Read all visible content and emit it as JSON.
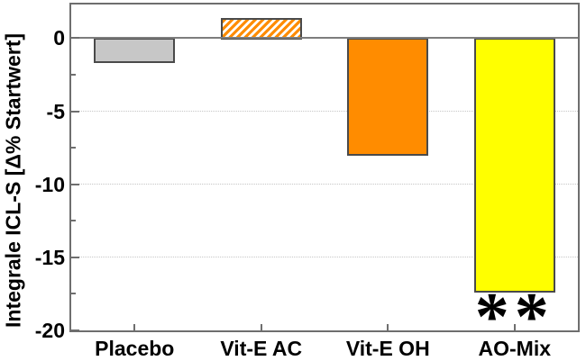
{
  "chart_data": {
    "type": "bar",
    "title": "",
    "xlabel": "",
    "ylabel": "Integrale ICL-S [Δ% Startwert]",
    "categories": [
      "Placebo",
      "Vit-E AC",
      "Vit-E OH",
      "AO-Mix"
    ],
    "values": [
      -1.6,
      1.4,
      -7.9,
      -17.3
    ],
    "bar_styles": [
      {
        "fill": "#c7c7c7",
        "hatch": false
      },
      {
        "fill": "#ffffff",
        "hatch": true,
        "hatch_color": "#ff8c00"
      },
      {
        "fill": "#ff8c00",
        "hatch": false
      },
      {
        "fill": "#ffff00",
        "hatch": false
      }
    ],
    "bar_border_color": "#4a4a4a",
    "ylim": [
      -20,
      2.3
    ],
    "yticks": [
      0,
      -5,
      -10,
      -15,
      -20
    ],
    "ytick_labels": [
      "0",
      "-5",
      "-10",
      "-15",
      "-20"
    ],
    "minor_yticks": [
      -2.5,
      -7.5,
      -12.5,
      -17.5
    ],
    "gridlines": [
      -5,
      -10,
      -15
    ],
    "grid_on": true,
    "legend": "none",
    "colors": {
      "axis": "#6e6e6e",
      "zero_line": "#7d7d7d",
      "grid": "#c6c6c6",
      "text": "#000000",
      "background": "#ffffff"
    },
    "annotation": {
      "text": "**",
      "category_index": 3
    }
  }
}
